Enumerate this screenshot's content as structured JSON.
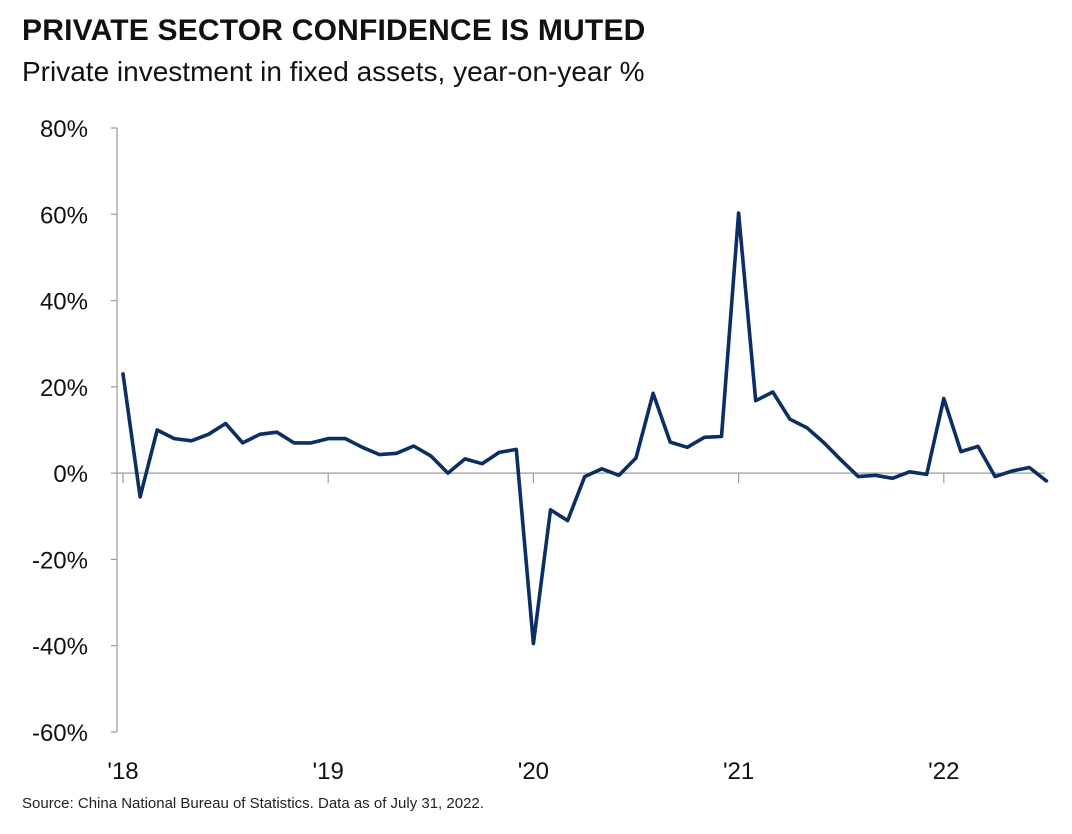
{
  "header": {
    "title": "PRIVATE SECTOR CONFIDENCE IS MUTED",
    "subtitle": "Private investment in fixed assets, year-on-year %"
  },
  "footer": {
    "source": "Source: China National Bureau of Statistics. Data as of July 31, 2022."
  },
  "colors": {
    "line": "#0b2e63",
    "axis": "#9a9a9a",
    "text": "#111111"
  },
  "chart_data": {
    "type": "line",
    "title": "PRIVATE SECTOR CONFIDENCE IS MUTED",
    "subtitle": "Private investment in fixed assets, year-on-year %",
    "xlabel": "",
    "ylabel": "",
    "ylim": [
      -60,
      80
    ],
    "y_ticks": [
      80,
      60,
      40,
      20,
      0,
      -20,
      -40,
      -60
    ],
    "y_tick_labels": [
      "80%",
      "60%",
      "40%",
      "20%",
      "0%",
      "-20%",
      "-40%",
      "-60%"
    ],
    "x_tick_labels": [
      "'18",
      "'19",
      "'20",
      "'21",
      "'22"
    ],
    "grid": false,
    "legend": "none",
    "series": [
      {
        "x": [
          "2018-01",
          "2018-02",
          "2018-03",
          "2018-04",
          "2018-05",
          "2018-06",
          "2018-07",
          "2018-08",
          "2018-09",
          "2018-10",
          "2018-11",
          "2018-12",
          "2019-01",
          "2019-02",
          "2019-03",
          "2019-04",
          "2019-05",
          "2019-06",
          "2019-07",
          "2019-08",
          "2019-09",
          "2019-10",
          "2019-11",
          "2019-12",
          "2020-01",
          "2020-02",
          "2020-03",
          "2020-04",
          "2020-05",
          "2020-06",
          "2020-07",
          "2020-08",
          "2020-09",
          "2020-10",
          "2020-11",
          "2020-12",
          "2021-01",
          "2021-02",
          "2021-03",
          "2021-04",
          "2021-05",
          "2021-06",
          "2021-07",
          "2021-08",
          "2021-09",
          "2021-10",
          "2021-11",
          "2021-12",
          "2022-01",
          "2022-02",
          "2022-03",
          "2022-04",
          "2022-05",
          "2022-06",
          "2022-07"
        ],
        "values": [
          23,
          -5.5,
          10,
          8,
          7.5,
          9,
          11.5,
          7,
          9,
          9.5,
          7,
          7,
          8,
          8,
          6,
          4.3,
          4.6,
          6.3,
          4,
          0,
          3.3,
          2.2,
          4.8,
          5.5,
          -39.5,
          -8.5,
          -11,
          -0.8,
          1,
          -0.5,
          3.5,
          18.5,
          7.2,
          6,
          8.3,
          8.5,
          60.3,
          16.8,
          18.8,
          12.5,
          10.5,
          7,
          3,
          -0.8,
          -0.5,
          -1.2,
          0.3,
          -0.3,
          17.3,
          5,
          6.2,
          -0.8,
          0.5,
          1.3,
          -1.8
        ]
      }
    ]
  }
}
